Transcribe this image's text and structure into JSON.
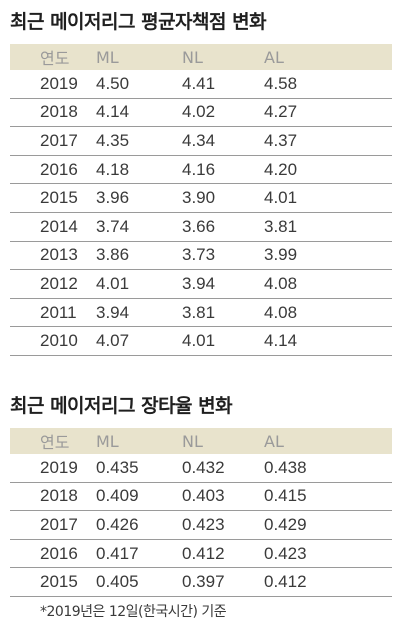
{
  "era_section": {
    "title": "최근 메이저리그 평균자책점 변화",
    "headers": [
      "연도",
      "ML",
      "NL",
      "AL"
    ],
    "rows": [
      [
        "2019",
        "4.50",
        "4.41",
        "4.58"
      ],
      [
        "2018",
        "4.14",
        "4.02",
        "4.27"
      ],
      [
        "2017",
        "4.35",
        "4.34",
        "4.37"
      ],
      [
        "2016",
        "4.18",
        "4.16",
        "4.20"
      ],
      [
        "2015",
        "3.96",
        "3.90",
        "4.01"
      ],
      [
        "2014",
        "3.74",
        "3.66",
        "3.81"
      ],
      [
        "2013",
        "3.86",
        "3.73",
        "3.99"
      ],
      [
        "2012",
        "4.01",
        "3.94",
        "4.08"
      ],
      [
        "2011",
        "3.94",
        "3.81",
        "4.08"
      ],
      [
        "2010",
        "4.07",
        "4.01",
        "4.14"
      ]
    ]
  },
  "slg_section": {
    "title": "최근 메이저리그 장타율 변화",
    "headers": [
      "연도",
      "ML",
      "NL",
      "AL"
    ],
    "rows": [
      [
        "2019",
        "0.435",
        "0.432",
        "0.438"
      ],
      [
        "2018",
        "0.409",
        "0.403",
        "0.415"
      ],
      [
        "2017",
        "0.426",
        "0.423",
        "0.429"
      ],
      [
        "2016",
        "0.417",
        "0.412",
        "0.423"
      ],
      [
        "2015",
        "0.405",
        "0.397",
        "0.412"
      ]
    ]
  },
  "footnote": "*2019년은 12일(한국시간) 기준",
  "colors": {
    "header_background": "#e8e3cc",
    "header_text": "#9a9a9a",
    "row_divider": "#9a9a9a"
  }
}
